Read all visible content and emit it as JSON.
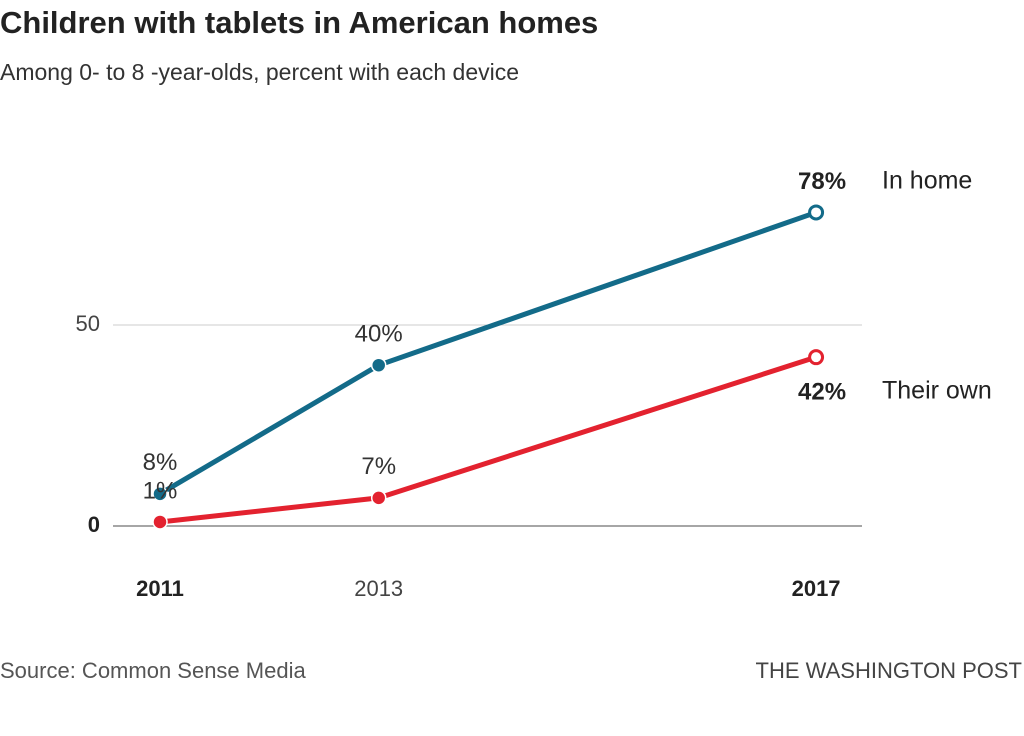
{
  "chart_data": {
    "type": "line",
    "title": "Children with tablets in American homes",
    "subtitle": "Among 0- to 8 -year-olds, percent with each device",
    "x": [
      2011,
      2013,
      2017
    ],
    "xlim": [
      2010.57,
      2017.42
    ],
    "xticks": [
      2011,
      2013,
      2017
    ],
    "ylim": [
      0,
      80
    ],
    "yticks": [
      0,
      50
    ],
    "grid": true,
    "series": [
      {
        "name": "In home",
        "color": "#136b89",
        "values": [
          8,
          40,
          78
        ],
        "value_labels": [
          "8%",
          "40%",
          "78%"
        ]
      },
      {
        "name": "Their own",
        "color": "#e3222f",
        "values": [
          1,
          7,
          42
        ],
        "value_labels": [
          "1%",
          "7%",
          "42%"
        ]
      }
    ],
    "source": "Source: Common Sense Media",
    "credit": "THE WASHINGTON POST"
  }
}
